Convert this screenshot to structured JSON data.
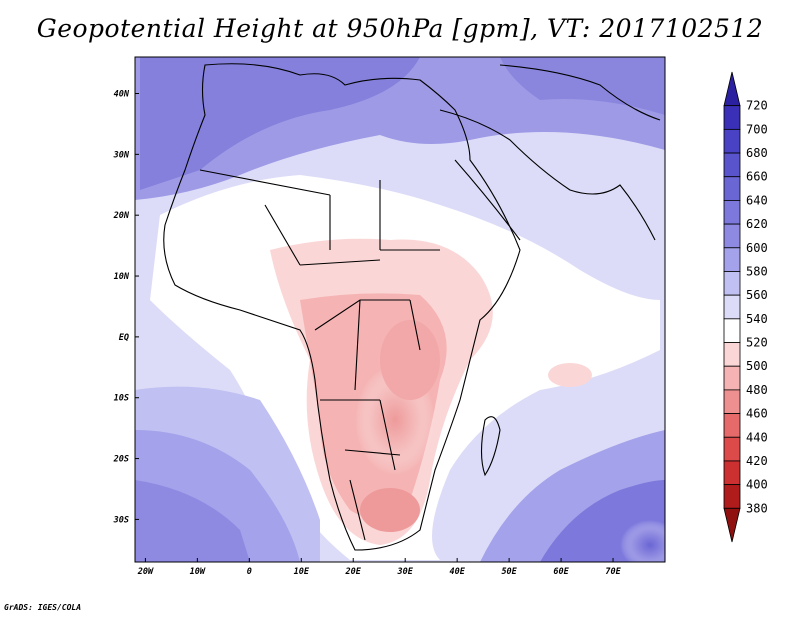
{
  "title": "Geopotential Height at 950hPa [gpm], VT: 2017102512",
  "credit": "GrADS: IGES/COLA",
  "map": {
    "lat_labels": [
      "40N",
      "30N",
      "20N",
      "10N",
      "EQ",
      "10S",
      "20S",
      "30S"
    ],
    "lon_labels": [
      "20W",
      "10W",
      "0",
      "10E",
      "20E",
      "30E",
      "40E",
      "50E",
      "60E",
      "70E"
    ],
    "lon_range": [
      -22,
      80
    ],
    "lat_range": [
      -37,
      46
    ]
  },
  "colorbar": {
    "labels": [
      "720",
      "700",
      "680",
      "660",
      "640",
      "620",
      "600",
      "580",
      "560",
      "540",
      "520",
      "500",
      "480",
      "460",
      "440",
      "420",
      "400",
      "380"
    ],
    "colors": [
      "#2a20a0",
      "#3a30b8",
      "#4a42c4",
      "#5a54cc",
      "#6a66d4",
      "#7c78dc",
      "#8e8ae2",
      "#a4a2ea",
      "#c0c0f2",
      "#dcdcf8",
      "#ffffff",
      "#fbd6d6",
      "#f5b3b3",
      "#ee9090",
      "#e66a6a",
      "#dc4a4a",
      "#cc3030",
      "#b01c1c",
      "#901010"
    ]
  }
}
